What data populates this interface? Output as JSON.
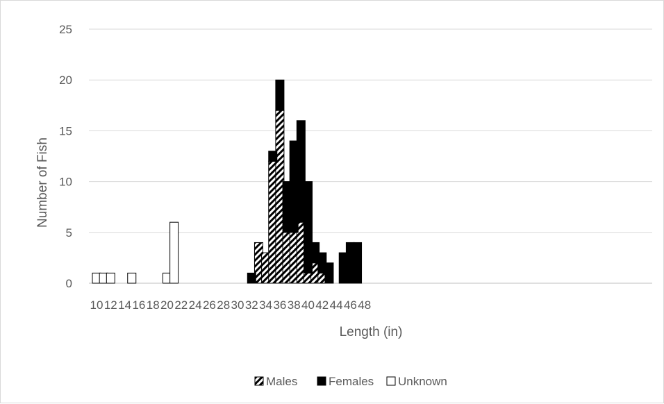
{
  "chart_data": {
    "type": "bar",
    "stacked": true,
    "xlabel": "Length (in)",
    "ylabel": "Number of Fish",
    "ylim": [
      0,
      25
    ],
    "yticks": [
      0,
      5,
      10,
      15,
      20,
      25
    ],
    "xlim": [
      10,
      48
    ],
    "xticks": [
      "10",
      "12",
      "14",
      "16",
      "18",
      "20",
      "22",
      "24",
      "26",
      "28",
      "30",
      "32",
      "34",
      "36",
      "38",
      "40",
      "42",
      "44",
      "46",
      "48"
    ],
    "grid": "horizontal",
    "legend_position": "bottom",
    "series": [
      {
        "name": "Males",
        "pattern": "diagonal-hatch",
        "points": [
          [
            33,
            4
          ],
          [
            34,
            3
          ],
          [
            35,
            12
          ],
          [
            36,
            17
          ],
          [
            37,
            5
          ],
          [
            38,
            5
          ],
          [
            39,
            6
          ],
          [
            40,
            1
          ],
          [
            41,
            2
          ],
          [
            42,
            1
          ]
        ]
      },
      {
        "name": "Females",
        "color": "#000000",
        "points": [
          [
            32,
            1
          ],
          [
            35,
            1
          ],
          [
            36,
            3
          ],
          [
            37,
            5
          ],
          [
            38,
            9
          ],
          [
            39,
            10
          ],
          [
            40,
            9
          ],
          [
            41,
            2
          ],
          [
            42,
            2
          ],
          [
            43,
            2
          ],
          [
            45,
            3
          ],
          [
            46,
            4
          ],
          [
            47,
            4
          ]
        ]
      },
      {
        "name": "Unknown",
        "color": "#ffffff",
        "points": [
          [
            10,
            1
          ],
          [
            11,
            1
          ],
          [
            12,
            1
          ],
          [
            15,
            1
          ],
          [
            20,
            1
          ],
          [
            21,
            6
          ]
        ]
      }
    ]
  }
}
